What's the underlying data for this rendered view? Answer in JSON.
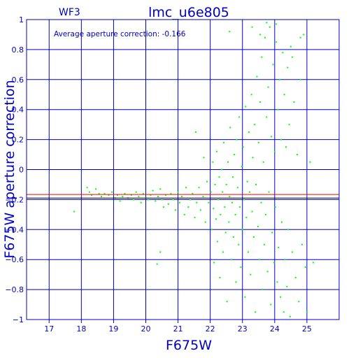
{
  "chart_data": {
    "type": "scatter",
    "panel_label": "WF3",
    "title": "lmc_u6e805",
    "xlabel": "F675W",
    "ylabel": "F675W aperture correction",
    "annotation": "Average aperture correction: -0.166",
    "average_line_y": -0.166,
    "reference_line_y": -0.19,
    "xlim": [
      16.3,
      26.0
    ],
    "ylim": [
      -1,
      1
    ],
    "x_ticks": [
      17,
      18,
      19,
      20,
      21,
      22,
      23,
      24,
      25
    ],
    "y_ticks": [
      -1,
      -0.8,
      -0.6,
      -0.4,
      -0.2,
      0,
      0.2,
      0.4,
      0.6,
      0.8,
      1
    ],
    "y_tick_labels": [
      "−1",
      "−0.8",
      "−0.6",
      "−0.4",
      "−0.2",
      "0",
      "0.2",
      "0.4",
      "0.6",
      "0.8",
      "1"
    ],
    "grid": true,
    "colors": {
      "axes": "#0000c8",
      "points": "#00ff00",
      "average_line": "#ff0000",
      "reference_line": "#000000"
    },
    "points": [
      [
        17.78,
        -0.28
      ],
      [
        18.18,
        -0.12
      ],
      [
        18.25,
        -0.15
      ],
      [
        18.32,
        -0.17
      ],
      [
        18.45,
        -0.13
      ],
      [
        18.55,
        -0.16
      ],
      [
        18.62,
        -0.18
      ],
      [
        18.72,
        -0.16
      ],
      [
        18.85,
        -0.17
      ],
      [
        18.95,
        -0.15
      ],
      [
        19.05,
        -0.19
      ],
      [
        19.12,
        -0.17
      ],
      [
        19.2,
        -0.21
      ],
      [
        19.28,
        -0.18
      ],
      [
        19.35,
        -0.16
      ],
      [
        19.45,
        -0.19
      ],
      [
        19.55,
        -0.17
      ],
      [
        19.62,
        -0.2
      ],
      [
        19.7,
        -0.15
      ],
      [
        19.78,
        -0.18
      ],
      [
        19.85,
        -0.22
      ],
      [
        19.92,
        -0.16
      ],
      [
        20.0,
        -0.19
      ],
      [
        20.08,
        -0.2
      ],
      [
        20.15,
        -0.17
      ],
      [
        20.22,
        -0.14
      ],
      [
        20.3,
        -0.21
      ],
      [
        20.38,
        -0.18
      ],
      [
        20.45,
        -0.13
      ],
      [
        20.5,
        -0.2
      ],
      [
        20.55,
        -0.25
      ],
      [
        20.62,
        -0.17
      ],
      [
        20.7,
        -0.23
      ],
      [
        20.78,
        -0.16
      ],
      [
        20.85,
        -0.2
      ],
      [
        20.92,
        -0.27
      ],
      [
        21.0,
        -0.15
      ],
      [
        21.05,
        -0.22
      ],
      [
        21.12,
        -0.18
      ],
      [
        21.2,
        -0.3
      ],
      [
        21.25,
        -0.12
      ],
      [
        21.32,
        -0.25
      ],
      [
        21.38,
        -0.2
      ],
      [
        21.45,
        -0.16
      ],
      [
        21.52,
        -0.32
      ],
      [
        21.58,
        -0.22
      ],
      [
        21.65,
        -0.12
      ],
      [
        21.7,
        -0.27
      ],
      [
        21.78,
        -0.18
      ],
      [
        21.85,
        -0.35
      ],
      [
        21.9,
        -0.08
      ],
      [
        21.95,
        -0.22
      ],
      [
        20.45,
        -0.55
      ],
      [
        20.35,
        -0.63
      ],
      [
        21.55,
        0.25
      ],
      [
        21.8,
        0.08
      ],
      [
        22.02,
        -0.15
      ],
      [
        22.05,
        -0.4
      ],
      [
        22.08,
        0.05
      ],
      [
        22.1,
        -0.26
      ],
      [
        22.12,
        -0.62
      ],
      [
        22.15,
        -0.1
      ],
      [
        22.18,
        -0.33
      ],
      [
        22.2,
        0.12
      ],
      [
        22.22,
        -0.48
      ],
      [
        22.25,
        -0.2
      ],
      [
        22.28,
        -0.05
      ],
      [
        22.3,
        -0.72
      ],
      [
        22.32,
        -0.3
      ],
      [
        22.35,
        0.0
      ],
      [
        22.38,
        -0.15
      ],
      [
        22.4,
        -0.55
      ],
      [
        22.42,
        0.18
      ],
      [
        22.45,
        -0.25
      ],
      [
        22.48,
        -0.42
      ],
      [
        22.5,
        -0.1
      ],
      [
        22.52,
        -0.88
      ],
      [
        22.55,
        0.05
      ],
      [
        22.58,
        -0.35
      ],
      [
        22.6,
        -0.18
      ],
      [
        22.62,
        0.28
      ],
      [
        22.65,
        -0.6
      ],
      [
        22.68,
        -0.22
      ],
      [
        22.7,
        -0.05
      ],
      [
        22.72,
        -0.45
      ],
      [
        22.75,
        0.1
      ],
      [
        22.78,
        -0.3
      ],
      [
        22.8,
        -0.75
      ],
      [
        22.82,
        0.2
      ],
      [
        22.85,
        -0.12
      ],
      [
        22.88,
        -0.5
      ],
      [
        22.9,
        0.35
      ],
      [
        22.92,
        -0.25
      ],
      [
        22.95,
        -0.65
      ],
      [
        22.98,
        0.02
      ],
      [
        23.0,
        -0.4
      ],
      [
        23.02,
        0.15
      ],
      [
        23.05,
        -0.2
      ],
      [
        23.08,
        -0.85
      ],
      [
        23.1,
        0.42
      ],
      [
        23.12,
        -0.32
      ],
      [
        23.15,
        -0.08
      ],
      [
        23.18,
        -0.55
      ],
      [
        23.2,
        0.25
      ],
      [
        23.22,
        -0.15
      ],
      [
        23.25,
        -0.7
      ],
      [
        23.28,
        0.5
      ],
      [
        23.3,
        -0.28
      ],
      [
        23.32,
        0.08
      ],
      [
        23.35,
        -0.45
      ],
      [
        23.38,
        0.3
      ],
      [
        23.4,
        -0.95
      ],
      [
        23.42,
        -0.1
      ],
      [
        23.45,
        0.62
      ],
      [
        23.48,
        -0.38
      ],
      [
        23.5,
        0.18
      ],
      [
        23.52,
        -0.6
      ],
      [
        23.55,
        0.45
      ],
      [
        23.58,
        -0.22
      ],
      [
        23.6,
        0.75
      ],
      [
        23.62,
        -0.8
      ],
      [
        23.65,
        0.05
      ],
      [
        23.68,
        -0.5
      ],
      [
        23.7,
        0.88
      ],
      [
        23.72,
        -0.3
      ],
      [
        23.75,
        0.35
      ],
      [
        23.78,
        -0.68
      ],
      [
        23.8,
        0.55
      ],
      [
        23.82,
        -0.15
      ],
      [
        23.85,
        0.95
      ],
      [
        23.88,
        -0.9
      ],
      [
        23.9,
        0.22
      ],
      [
        23.92,
        -0.42
      ],
      [
        23.95,
        0.7
      ],
      [
        23.98,
        -0.62
      ],
      [
        24.0,
        0.12
      ],
      [
        24.02,
        -0.25
      ],
      [
        24.05,
        0.85
      ],
      [
        24.08,
        -0.75
      ],
      [
        24.1,
        0.4
      ],
      [
        24.12,
        -0.52
      ],
      [
        24.15,
        0.6
      ],
      [
        24.18,
        -0.85
      ],
      [
        24.2,
        0.2
      ],
      [
        24.22,
        -0.35
      ],
      [
        24.25,
        0.78
      ],
      [
        24.28,
        -0.95
      ],
      [
        24.3,
        0.5
      ],
      [
        24.32,
        -0.6
      ],
      [
        24.35,
        0.15
      ],
      [
        24.38,
        -0.78
      ],
      [
        24.4,
        0.68
      ],
      [
        24.42,
        -0.4
      ],
      [
        24.45,
        0.3
      ],
      [
        24.48,
        -0.98
      ],
      [
        24.5,
        0.82
      ],
      [
        24.55,
        -0.55
      ],
      [
        24.6,
        0.45
      ],
      [
        24.65,
        -0.72
      ],
      [
        24.7,
        0.1
      ],
      [
        24.75,
        -0.88
      ],
      [
        24.8,
        0.6
      ],
      [
        24.85,
        -0.5
      ],
      [
        24.9,
        0.9
      ],
      [
        24.95,
        -0.65
      ],
      [
        25.0,
        -0.95
      ],
      [
        25.1,
        0.05
      ],
      [
        25.2,
        -0.62
      ],
      [
        22.6,
        0.92
      ],
      [
        23.3,
        0.95
      ],
      [
        23.55,
        0.9
      ],
      [
        23.75,
        0.98
      ],
      [
        24.05,
        0.97
      ],
      [
        24.8,
        0.88
      ],
      [
        24.55,
        0.75
      ]
    ]
  }
}
